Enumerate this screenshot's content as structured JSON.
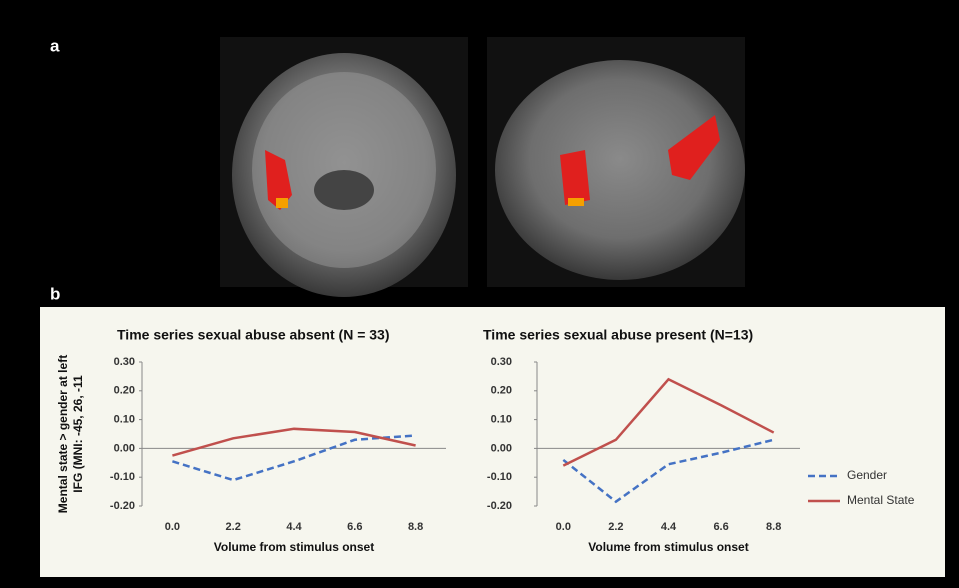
{
  "panels": [
    "a",
    "b"
  ],
  "chart_data": [
    {
      "type": "line",
      "title": "Time series sexual abuse absent (N = 33)",
      "y_label": [
        "Mental state > gender at left",
        "IFG (MNI: -45, 26, -11"
      ],
      "x_label": "Volume from stimulus onset",
      "categories": [
        "0.0",
        "2.2",
        "4.4",
        "6.6",
        "8.8"
      ],
      "series": [
        {
          "color": "#4472c4",
          "dash": true,
          "values": [
            -0.045,
            -0.11,
            -0.045,
            0.03,
            0.045
          ]
        },
        {
          "color": "#c0504d",
          "dash": false,
          "values": [
            -0.025,
            0.035,
            0.068,
            0.057,
            0.01
          ]
        }
      ],
      "ylim": [
        -0.2,
        0.3
      ],
      "yticks": [
        {
          "value": -0.2,
          "label": "-0.20"
        },
        {
          "value": -0.1,
          "label": "-0.10"
        },
        {
          "value": 0,
          "label": "0.00"
        },
        {
          "value": 0.1,
          "label": "0.10"
        },
        {
          "value": 0.2,
          "label": "0.20"
        },
        {
          "value": 0.3,
          "label": "0.30"
        }
      ]
    },
    {
      "type": "line",
      "title": "Time series sexual abuse present (N=13)",
      "x_label": "Volume from stimulus onset",
      "categories": [
        "0.0",
        "2.2",
        "4.4",
        "6.6",
        "8.8"
      ],
      "series": [
        {
          "name": "Gender",
          "color": "#4472c4",
          "dash": true,
          "values": [
            -0.04,
            -0.185,
            -0.055,
            -0.015,
            0.03
          ]
        },
        {
          "name": "Mental State",
          "color": "#c0504d",
          "dash": false,
          "values": [
            -0.06,
            0.03,
            0.24,
            0.15,
            0.055
          ]
        }
      ],
      "ylim": [
        -0.2,
        0.3
      ],
      "yticks": [
        {
          "value": -0.2,
          "label": "-0.20"
        },
        {
          "value": -0.1,
          "label": "-0.10"
        },
        {
          "value": 0,
          "label": "0.00"
        },
        {
          "value": 0.1,
          "label": "0.10"
        },
        {
          "value": 0.2,
          "label": "0.20"
        },
        {
          "value": 0.3,
          "label": "0.30"
        }
      ],
      "legend": "right"
    }
  ]
}
